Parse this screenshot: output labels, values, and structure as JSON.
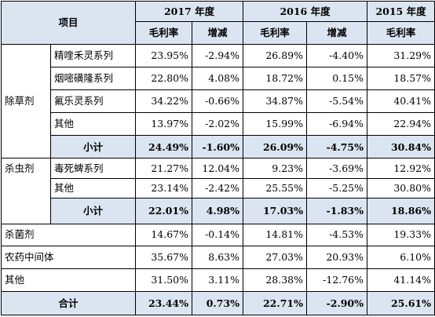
{
  "header": {
    "project_label": "项目",
    "years": [
      "2017 年度",
      "2016 年度",
      "2015 年度"
    ],
    "col_margin": "毛利率",
    "col_change": "增减"
  },
  "groups": {
    "herbicide": {
      "label": "除草剂",
      "rows": [
        {
          "name": "精喹禾灵系列",
          "m2017": "23.95%",
          "c2017": "-2.94%",
          "m2016": "26.89%",
          "c2016": "-4.40%",
          "m2015": "31.29%"
        },
        {
          "name": "烟嘧磺隆系列",
          "m2017": "22.80%",
          "c2017": "4.08%",
          "m2016": "18.72%",
          "c2016": "0.15%",
          "m2015": "18.57%"
        },
        {
          "name": "氟乐灵系列",
          "m2017": "34.22%",
          "c2017": "-0.66%",
          "m2016": "34.87%",
          "c2016": "-5.54%",
          "m2015": "40.41%"
        },
        {
          "name": "其他",
          "m2017": "13.97%",
          "c2017": "-2.02%",
          "m2016": "15.99%",
          "c2016": "-6.94%",
          "m2015": "22.94%"
        }
      ],
      "subtotal": {
        "name": "小计",
        "m2017": "24.49%",
        "c2017": "-1.60%",
        "m2016": "26.09%",
        "c2016": "-4.75%",
        "m2015": "30.84%"
      }
    },
    "insecticide": {
      "label": "杀虫剂",
      "rows": [
        {
          "name": "毒死蜱系列",
          "m2017": "21.27%",
          "c2017": "12.04%",
          "m2016": "9.23%",
          "c2016": "-3.69%",
          "m2015": "12.92%"
        },
        {
          "name": "其他",
          "m2017": "23.14%",
          "c2017": "-2.42%",
          "m2016": "25.55%",
          "c2016": "-5.25%",
          "m2015": "30.80%"
        }
      ],
      "subtotal": {
        "name": "小计",
        "m2017": "22.01%",
        "c2017": "4.98%",
        "m2016": "17.03%",
        "c2016": "-1.83%",
        "m2015": "18.86%"
      }
    }
  },
  "singles": [
    {
      "name": "杀菌剂",
      "m2017": "14.67%",
      "c2017": "-0.14%",
      "m2016": "14.81%",
      "c2016": "-4.53%",
      "m2015": "19.33%"
    },
    {
      "name": "农药中间体",
      "m2017": "35.67%",
      "c2017": "8.63%",
      "m2016": "27.03%",
      "c2016": "20.93%",
      "m2015": "6.10%"
    },
    {
      "name": "其他",
      "m2017": "31.50%",
      "c2017": "3.11%",
      "m2016": "28.38%",
      "c2016": "-12.76%",
      "m2015": "41.14%"
    }
  ],
  "total": {
    "name": "合计",
    "m2017": "23.44%",
    "c2017": "0.73%",
    "m2016": "22.71%",
    "c2016": "-2.90%",
    "m2015": "25.61%"
  },
  "colors": {
    "header_fill": "#dbe5f1",
    "border": "#000000"
  }
}
